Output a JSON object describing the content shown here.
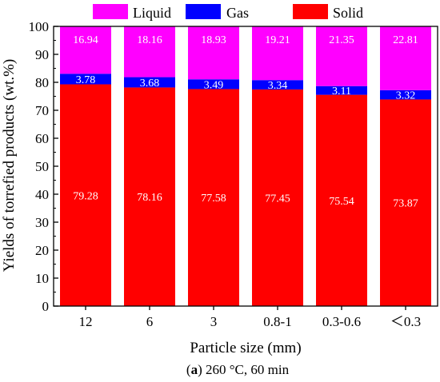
{
  "chart_data": {
    "type": "bar",
    "stacked": true,
    "categories": [
      "12",
      "6",
      "3",
      "0.8-1",
      "0.3-0.6",
      "＜0.3"
    ],
    "series": [
      {
        "name": "Solid",
        "color": "#ff0000",
        "values": [
          79.28,
          78.16,
          77.58,
          77.45,
          75.54,
          73.87
        ]
      },
      {
        "name": "Gas",
        "color": "#0000ff",
        "values": [
          3.78,
          3.68,
          3.49,
          3.34,
          3.11,
          3.32
        ]
      },
      {
        "name": "Liquid",
        "color": "#ff00ff",
        "values": [
          16.94,
          18.16,
          18.93,
          19.21,
          21.35,
          22.81
        ]
      }
    ],
    "legend_order": [
      "Liquid",
      "Gas",
      "Solid"
    ],
    "legend_position": "top",
    "xlabel": "Particle size (mm)",
    "ylabel": "Yields of torrefied products (wt.%)",
    "ylim": [
      0,
      100
    ],
    "yticks": [
      0,
      10,
      20,
      30,
      40,
      50,
      60,
      70,
      80,
      90,
      100
    ],
    "grid": false,
    "caption": {
      "label": "a",
      "text": " 260 °C, 60 min"
    }
  }
}
